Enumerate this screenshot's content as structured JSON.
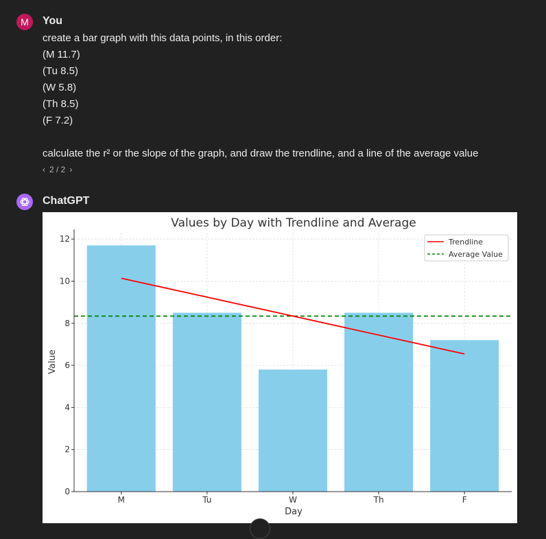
{
  "user_message": {
    "avatar_letter": "M",
    "author": "You",
    "lines": [
      "create a bar graph with this data points, in this order:",
      "(M 11.7)",
      "(Tu 8.5)",
      "(W 5.8)",
      "(Th 8.5)",
      "(F 7.2)",
      "",
      "calculate the r² or the slope of the graph, and draw the trendline, and a line of the average value"
    ],
    "pager": {
      "prev": "‹",
      "label": "2 / 2",
      "next": "›"
    }
  },
  "assistant_message": {
    "author": "ChatGPT",
    "avatar_icon": "openai-logo-icon"
  },
  "colors": {
    "bar": "#87ceeb",
    "trendline": "#ff0000",
    "average": "#008000",
    "user_avatar": "#c2185b",
    "gpt_avatar": "#ab68ff"
  },
  "chart_data": {
    "type": "bar",
    "title": "Values by Day with Trendline and Average",
    "xlabel": "Day",
    "ylabel": "Value",
    "categories": [
      "M",
      "Tu",
      "W",
      "Th",
      "F"
    ],
    "values": [
      11.7,
      8.5,
      5.8,
      8.5,
      7.2
    ],
    "ylim": [
      0,
      12.3
    ],
    "yticks": [
      0,
      2,
      4,
      6,
      8,
      10,
      12
    ],
    "grid": true,
    "trendline": {
      "label": "Trendline",
      "start": 10.14,
      "end": 6.54
    },
    "average": {
      "label": "Average Value",
      "value": 8.34
    },
    "legend_position": "top-right"
  }
}
